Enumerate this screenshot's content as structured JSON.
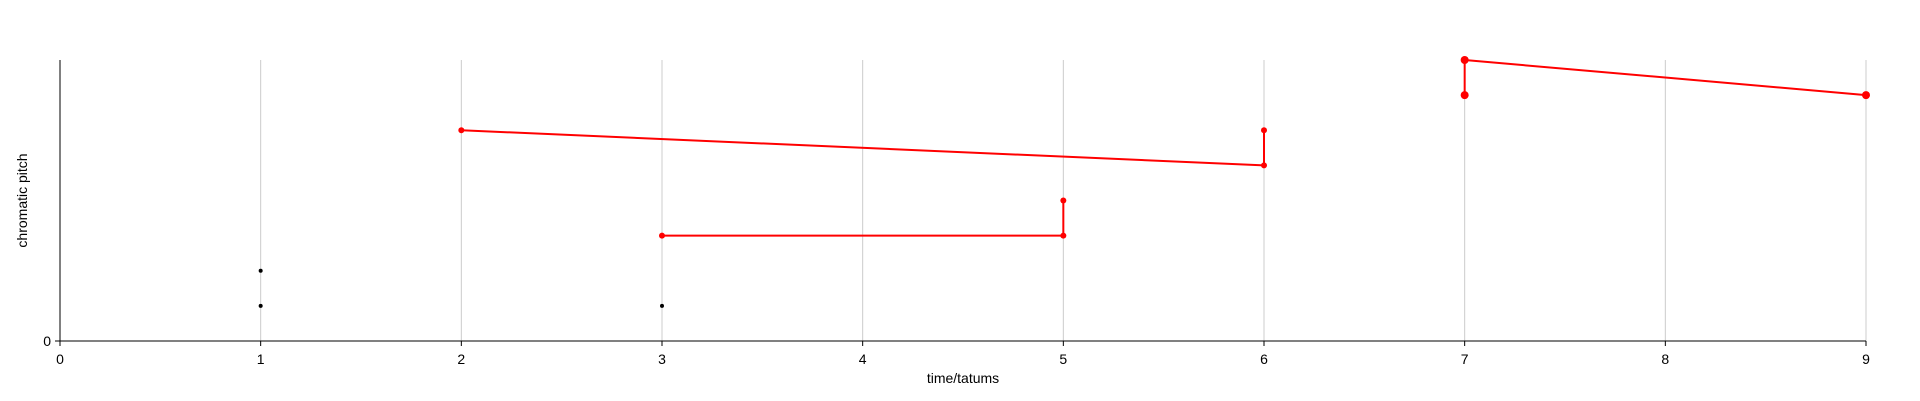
{
  "chart_data": {
    "type": "scatter",
    "title": "",
    "xlabel": "time/tatums",
    "ylabel": "chromatic pitch",
    "xlim": [
      0,
      9
    ],
    "ylim": [
      0,
      8
    ],
    "grid": {
      "vertical": true,
      "horizontal": false
    },
    "x_ticks": [
      "0",
      "1",
      "2",
      "3",
      "4",
      "5",
      "6",
      "7",
      "8",
      "9"
    ],
    "y_ticks": [
      "0"
    ],
    "colors": {
      "highlight": "#ff0000",
      "point": "#000000",
      "grid": "#cccccc",
      "axis": "#000000"
    },
    "black_points": [
      {
        "x": 1,
        "y": 2
      },
      {
        "x": 1,
        "y": 1
      },
      {
        "x": 3,
        "y": 1
      }
    ],
    "red_paths": [
      {
        "points": [
          {
            "x": 3,
            "y": 3
          },
          {
            "x": 5,
            "y": 3
          },
          {
            "x": 5,
            "y": 4
          }
        ]
      },
      {
        "points": [
          {
            "x": 2,
            "y": 6
          },
          {
            "x": 6,
            "y": 5
          },
          {
            "x": 6,
            "y": 6
          }
        ]
      },
      {
        "points": [
          {
            "x": 7,
            "y": 7
          },
          {
            "x": 7,
            "y": 8
          },
          {
            "x": 9,
            "y": 7
          }
        ]
      }
    ]
  }
}
